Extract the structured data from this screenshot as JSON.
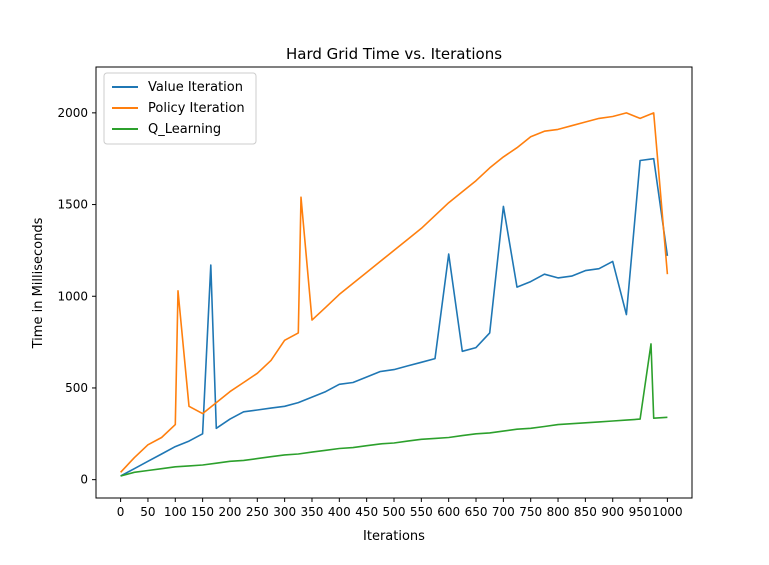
{
  "chart_data": {
    "type": "line",
    "title": "Hard Grid Time vs. Iterations",
    "xlabel": "Iterations",
    "ylabel": "Time in Milliseconds",
    "xlim": [
      -45,
      1045
    ],
    "ylim": [
      -100,
      2250
    ],
    "xticks": [
      0,
      50,
      100,
      150,
      200,
      250,
      300,
      350,
      400,
      450,
      500,
      550,
      600,
      650,
      700,
      750,
      800,
      850,
      900,
      950,
      1000
    ],
    "yticks": [
      0,
      500,
      1000,
      1500,
      2000
    ],
    "grid": false,
    "legend_position": "top-left",
    "series": [
      {
        "name": "Value Iteration",
        "color": "#1f77b4",
        "x": [
          0,
          25,
          50,
          75,
          100,
          125,
          150,
          165,
          175,
          200,
          225,
          250,
          275,
          300,
          325,
          350,
          375,
          400,
          425,
          450,
          475,
          500,
          525,
          550,
          575,
          600,
          625,
          650,
          675,
          700,
          725,
          750,
          775,
          800,
          825,
          850,
          875,
          900,
          925,
          950,
          975,
          1000
        ],
        "y": [
          20,
          60,
          100,
          140,
          180,
          210,
          250,
          1170,
          280,
          330,
          370,
          380,
          390,
          400,
          420,
          450,
          480,
          520,
          530,
          560,
          590,
          600,
          620,
          640,
          660,
          1230,
          700,
          720,
          800,
          1490,
          1050,
          1080,
          1120,
          1100,
          1110,
          1140,
          1150,
          1190,
          900,
          1740,
          1750,
          1220
        ]
      },
      {
        "name": "Policy Iteration",
        "color": "#ff7f0e",
        "x": [
          0,
          25,
          50,
          75,
          100,
          105,
          125,
          150,
          175,
          200,
          225,
          250,
          275,
          300,
          325,
          330,
          350,
          375,
          400,
          425,
          450,
          475,
          500,
          525,
          550,
          575,
          600,
          625,
          650,
          675,
          700,
          725,
          750,
          775,
          800,
          825,
          850,
          875,
          900,
          925,
          950,
          975,
          1000
        ],
        "y": [
          40,
          120,
          190,
          230,
          300,
          1030,
          400,
          360,
          420,
          480,
          530,
          580,
          650,
          760,
          800,
          1540,
          870,
          940,
          1010,
          1070,
          1130,
          1190,
          1250,
          1310,
          1370,
          1440,
          1510,
          1570,
          1630,
          1700,
          1760,
          1810,
          1870,
          1900,
          1910,
          1930,
          1950,
          1970,
          1980,
          2000,
          1970,
          2000,
          1120
        ]
      },
      {
        "name": "Q_Learning",
        "color": "#2ca02c",
        "x": [
          0,
          25,
          50,
          75,
          100,
          125,
          150,
          175,
          200,
          225,
          250,
          275,
          300,
          325,
          350,
          375,
          400,
          425,
          450,
          475,
          500,
          525,
          550,
          575,
          600,
          625,
          650,
          675,
          700,
          725,
          750,
          775,
          800,
          825,
          850,
          875,
          900,
          925,
          950,
          970,
          975,
          1000
        ],
        "y": [
          20,
          40,
          50,
          60,
          70,
          75,
          80,
          90,
          100,
          105,
          115,
          125,
          135,
          140,
          150,
          160,
          170,
          175,
          185,
          195,
          200,
          210,
          220,
          225,
          230,
          240,
          250,
          255,
          265,
          275,
          280,
          290,
          300,
          305,
          310,
          315,
          320,
          325,
          330,
          740,
          335,
          340
        ]
      }
    ]
  }
}
